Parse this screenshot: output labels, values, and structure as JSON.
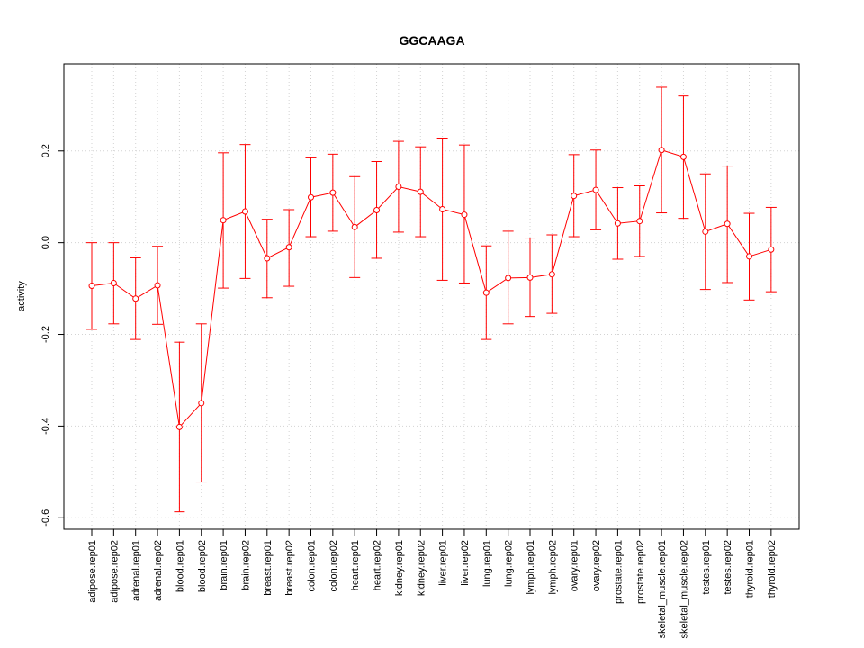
{
  "chart_data": {
    "type": "line",
    "title": "GGCAAGA",
    "xlabel": "",
    "ylabel": "activity",
    "ylim": [
      -0.625,
      0.39
    ],
    "yticks": [
      -0.6,
      -0.4,
      -0.2,
      0.0,
      0.2
    ],
    "ytick_labels": [
      "-0.6",
      "-0.4",
      "-0.2",
      "0.0",
      "0.2"
    ],
    "grid": true,
    "error_bars": true,
    "series_color": "#ff0000",
    "grid_color": "#d3d3d3",
    "categories": [
      "adipose.rep01",
      "adipose.rep02",
      "adrenal.rep01",
      "adrenal.rep02",
      "blood.rep01",
      "blood.rep02",
      "brain.rep01",
      "brain.rep02",
      "breast.rep01",
      "breast.rep02",
      "colon.rep01",
      "colon.rep02",
      "heart.rep01",
      "heart.rep02",
      "kidney.rep01",
      "kidney.rep02",
      "liver.rep01",
      "liver.rep02",
      "lung.rep01",
      "lung.rep02",
      "lymph.rep01",
      "lymph.rep02",
      "ovary.rep01",
      "ovary.rep02",
      "prostate.rep01",
      "prostate.rep02",
      "skeletal_muscle.rep01",
      "skeletal_muscle.rep02",
      "testes.rep01",
      "testes.rep02",
      "thyroid.rep01",
      "thyroid.rep02"
    ],
    "series": [
      {
        "values": [
          -0.094,
          -0.088,
          -0.122,
          -0.093,
          -0.402,
          -0.35,
          0.049,
          0.068,
          -0.034,
          -0.01,
          0.099,
          0.109,
          0.034,
          0.071,
          0.122,
          0.111,
          0.073,
          0.061,
          -0.109,
          -0.077,
          -0.076,
          -0.069,
          0.102,
          0.115,
          0.042,
          0.047,
          0.202,
          0.187,
          0.024,
          0.041,
          -0.03,
          -0.015
        ],
        "lower": [
          -0.189,
          -0.177,
          -0.211,
          -0.178,
          -0.587,
          -0.522,
          -0.099,
          -0.078,
          -0.12,
          -0.095,
          0.013,
          0.025,
          -0.076,
          -0.034,
          0.023,
          0.013,
          -0.082,
          -0.088,
          -0.211,
          -0.177,
          -0.161,
          -0.154,
          0.013,
          0.028,
          -0.036,
          -0.03,
          0.065,
          0.053,
          -0.102,
          -0.087,
          -0.125,
          -0.107
        ],
        "upper": [
          0.0,
          0.0,
          -0.033,
          -0.008,
          -0.217,
          -0.177,
          0.196,
          0.214,
          0.051,
          0.072,
          0.185,
          0.193,
          0.144,
          0.177,
          0.221,
          0.209,
          0.228,
          0.213,
          -0.007,
          0.025,
          0.01,
          0.017,
          0.192,
          0.202,
          0.12,
          0.124,
          0.339,
          0.32,
          0.15,
          0.167,
          0.064,
          0.077
        ]
      }
    ]
  }
}
